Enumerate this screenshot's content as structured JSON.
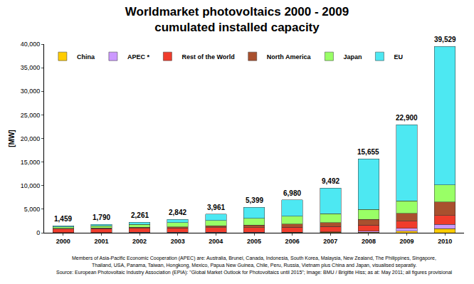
{
  "chart_data": {
    "type": "bar",
    "title": "Worldmarket photovoltaics 2000 - 2009",
    "subtitle": "cumulated installed capacity",
    "y_label": "[MW]",
    "categories": [
      "2000",
      "2001",
      "2002",
      "2003",
      "2004",
      "2005",
      "2006",
      "2007",
      "2008",
      "2009",
      "2010"
    ],
    "series": [
      {
        "name": "China",
        "color": "#ffcc00",
        "values": [
          19,
          24,
          42,
          52,
          64,
          68,
          80,
          100,
          145,
          373,
          893
        ]
      },
      {
        "name": "APEC *",
        "color": "#cc99ff",
        "values": [
          35,
          40,
          45,
          50,
          55,
          60,
          70,
          100,
          200,
          600,
          900
        ]
      },
      {
        "name": "Rest of the World",
        "color": "#f03c2c",
        "values": [
          750,
          800,
          850,
          900,
          950,
          1000,
          1050,
          1100,
          1300,
          1500,
          1900
        ]
      },
      {
        "name": "North America",
        "color": "#a9502e",
        "values": [
          140,
          170,
          220,
          280,
          370,
          480,
          620,
          830,
          1170,
          1650,
          2800
        ]
      },
      {
        "name": "Japan",
        "color": "#99ff66",
        "values": [
          330,
          450,
          640,
          860,
          1130,
          1420,
          1710,
          1920,
          2140,
          2627,
          3622
        ]
      },
      {
        "name": "EU",
        "color": "#4de8f2",
        "values": [
          185,
          306,
          464,
          700,
          1392,
          2371,
          3450,
          5442,
          10700,
          16150,
          29414
        ]
      }
    ],
    "totals": {
      "values": [
        1459,
        1790,
        2261,
        2842,
        3961,
        5399,
        6980,
        9492,
        15655,
        22900,
        39529
      ],
      "value_labels": [
        "1,459",
        "1,790",
        "2,261",
        "2,842",
        "3,961",
        "5,399",
        "6,980",
        "9,492",
        "15,655",
        "22,900",
        "39,529"
      ]
    },
    "ylim": [
      0,
      40000
    ],
    "yticks": [
      0,
      {
        "value": 5000,
        "label": "5,000"
      },
      {
        "value": 10000,
        "label": "10,000"
      },
      {
        "value": 15000,
        "label": "15,000"
      },
      {
        "value": 20000,
        "label": "20,000"
      },
      {
        "value": 25000,
        "label": "25,000"
      },
      {
        "value": 30000,
        "label": "30,000"
      },
      {
        "value": 35000,
        "label": "35,000"
      },
      {
        "value": 40000,
        "label": "40,000"
      }
    ],
    "stacked": true,
    "grid": false,
    "legend": "upper left",
    "notes": [
      "Members of Asia-Pacific Economic Cooperation (APEC) are: Australia, Brunei, Canada, Indonesia, South Korea, Malaysia, New Zealand, The Philippines, Singapore,",
      "Thailand, USA, Panama, Taiwan, Hongkong, Mexico, Papua New Guinea, Chile, Peru, Russia, Vietnam plus China and Japan, visualised separatly.",
      "Source: European Photovoltaic Industry Association (EPIA): \"Global Market Outlook for Photovoltaics until 2015\"; Image: BMU / Brigitte Hiss; as at: May 2011; all figures provisional"
    ]
  }
}
